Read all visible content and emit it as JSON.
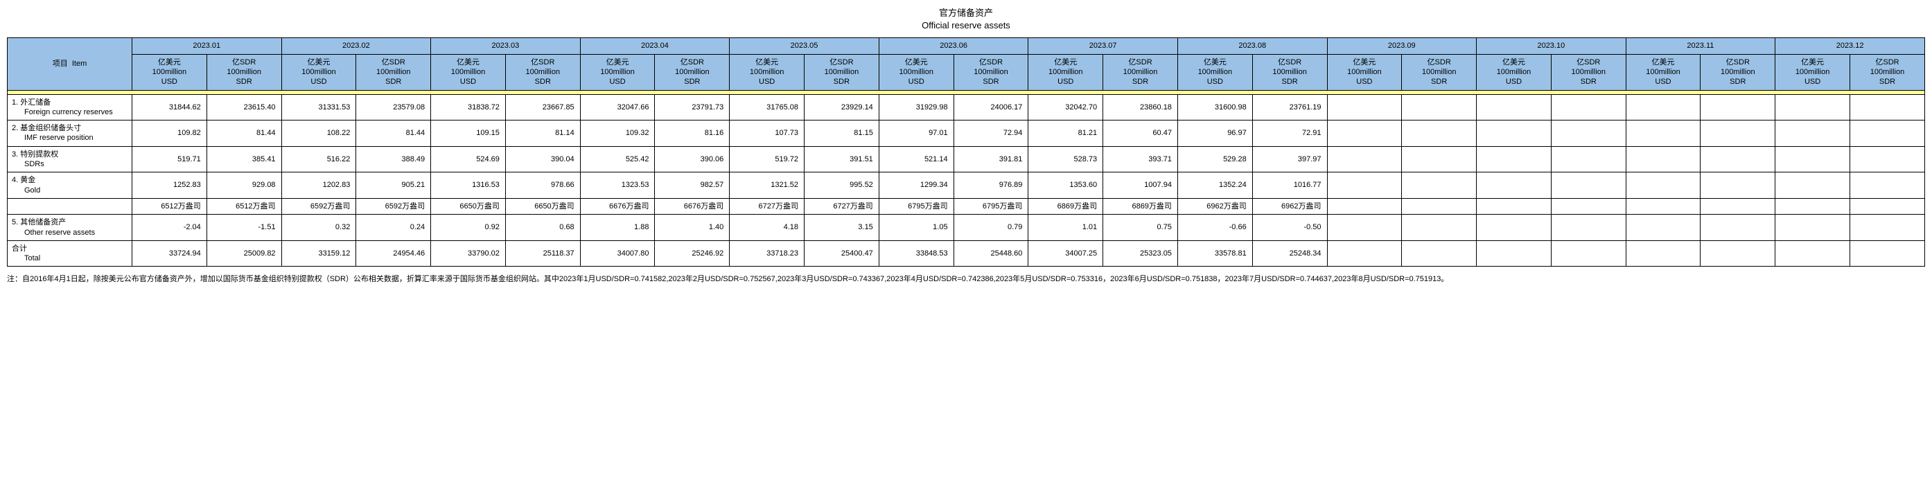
{
  "title_cn": "官方储备资产",
  "title_en": "Official reserve assets",
  "header": {
    "item_label_cn": "项目",
    "item_label_en": "Item",
    "months": [
      "2023.01",
      "2023.02",
      "2023.03",
      "2023.04",
      "2023.05",
      "2023.06",
      "2023.07",
      "2023.08",
      "2023.09",
      "2023.10",
      "2023.11",
      "2023.12"
    ],
    "usd_label_cn": "亿美元",
    "usd_label_mid": "100million",
    "usd_label_en": "USD",
    "sdr_label_cn": "亿SDR",
    "sdr_label_mid": "100million",
    "sdr_label_en": "SDR"
  },
  "rows": [
    {
      "idx": "1.",
      "label_cn": "外汇储备",
      "label_en": "Foreign currency reserves",
      "values": [
        "31844.62",
        "23615.40",
        "31331.53",
        "23579.08",
        "31838.72",
        "23667.85",
        "32047.66",
        "23791.73",
        "31765.08",
        "23929.14",
        "31929.98",
        "24006.17",
        "32042.70",
        "23860.18",
        "31600.98",
        "23761.19",
        "",
        "",
        "",
        "",
        "",
        "",
        "",
        ""
      ]
    },
    {
      "idx": "2.",
      "label_cn": "基金组织储备头寸",
      "label_en": "IMF reserve position",
      "values": [
        "109.82",
        "81.44",
        "108.22",
        "81.44",
        "109.15",
        "81.14",
        "109.32",
        "81.16",
        "107.73",
        "81.15",
        "97.01",
        "72.94",
        "81.21",
        "60.47",
        "96.97",
        "72.91",
        "",
        "",
        "",
        "",
        "",
        "",
        "",
        ""
      ]
    },
    {
      "idx": "3.",
      "label_cn": "特别提款权",
      "label_en": "SDRs",
      "values": [
        "519.71",
        "385.41",
        "516.22",
        "388.49",
        "524.69",
        "390.04",
        "525.42",
        "390.06",
        "519.72",
        "391.51",
        "521.14",
        "391.81",
        "528.73",
        "393.71",
        "529.28",
        "397.97",
        "",
        "",
        "",
        "",
        "",
        "",
        "",
        ""
      ]
    },
    {
      "idx": "4.",
      "label_cn": "黄金",
      "label_en": "Gold",
      "values": [
        "1252.83",
        "929.08",
        "1202.83",
        "905.21",
        "1316.53",
        "978.66",
        "1323.53",
        "982.57",
        "1321.52",
        "995.52",
        "1299.34",
        "976.89",
        "1353.60",
        "1007.94",
        "1352.24",
        "1016.77",
        "",
        "",
        "",
        "",
        "",
        "",
        "",
        ""
      ]
    },
    {
      "idx": "",
      "label_cn": "",
      "label_en": "",
      "values": [
        "6512万盎司",
        "6512万盎司",
        "6592万盎司",
        "6592万盎司",
        "6650万盎司",
        "6650万盎司",
        "6676万盎司",
        "6676万盎司",
        "6727万盎司",
        "6727万盎司",
        "6795万盎司",
        "6795万盎司",
        "6869万盎司",
        "6869万盎司",
        "6962万盎司",
        "6962万盎司",
        "",
        "",
        "",
        "",
        "",
        "",
        "",
        ""
      ]
    },
    {
      "idx": "5.",
      "label_cn": "其他储备资产",
      "label_en": "Other reserve assets",
      "values": [
        "-2.04",
        "-1.51",
        "0.32",
        "0.24",
        "0.92",
        "0.68",
        "1.88",
        "1.40",
        "4.18",
        "3.15",
        "1.05",
        "0.79",
        "1.01",
        "0.75",
        "-0.66",
        "-0.50",
        "",
        "",
        "",
        "",
        "",
        "",
        "",
        ""
      ]
    },
    {
      "idx": "",
      "label_cn": "合计",
      "label_en": "Total",
      "values": [
        "33724.94",
        "25009.82",
        "33159.12",
        "24954.46",
        "33790.02",
        "25118.37",
        "34007.80",
        "25246.92",
        "33718.23",
        "25400.47",
        "33848.53",
        "25448.60",
        "34007.25",
        "25323.05",
        "33578.81",
        "25248.34",
        "",
        "",
        "",
        "",
        "",
        "",
        "",
        ""
      ]
    }
  ],
  "footnote": "注：自2016年4月1日起，除按美元公布官方储备资产外，增加以国际货币基金组织特别提款权（SDR）公布相关数据，折算汇率来源于国际货币基金组织网站。其中2023年1月USD/SDR=0.741582,2023年2月USD/SDR=0.752567,2023年3月USD/SDR=0.743367,2023年4月USD/SDR=0.742386,2023年5月USD/SDR=0.753316，2023年6月USD/SDR=0.751838，2023年7月USD/SDR=0.744637,2023年8月USD/SDR=0.751913。",
  "colors": {
    "header_bg": "#9bc2e6",
    "separator_bg": "#ffff99",
    "border": "#000000",
    "background": "#ffffff",
    "text": "#000000"
  }
}
